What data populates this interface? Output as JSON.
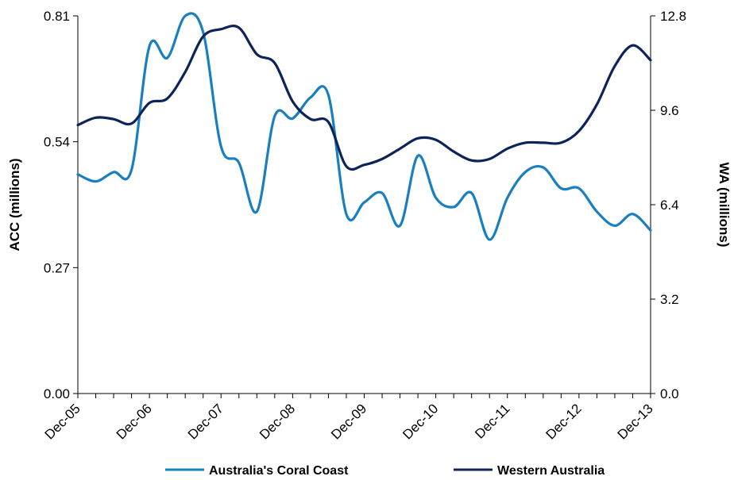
{
  "chart_data": {
    "type": "line",
    "x": [
      "Dec-05",
      "Mar-06",
      "Jun-06",
      "Sep-06",
      "Dec-06",
      "Mar-07",
      "Jun-07",
      "Sep-07",
      "Dec-07",
      "Mar-08",
      "Jun-08",
      "Sep-08",
      "Dec-08",
      "Mar-09",
      "Jun-09",
      "Sep-09",
      "Dec-09",
      "Mar-10",
      "Jun-10",
      "Sep-10",
      "Dec-10",
      "Mar-11",
      "Jun-11",
      "Sep-11",
      "Dec-11",
      "Mar-12",
      "Jun-12",
      "Sep-12",
      "Dec-12",
      "Mar-13",
      "Jun-13",
      "Sep-13",
      "Dec-13"
    ],
    "x_tick_labels": [
      "Dec-05",
      "Dec-06",
      "Dec-07",
      "Dec-08",
      "Dec-09",
      "Dec-10",
      "Dec-11",
      "Dec-12",
      "Dec-13"
    ],
    "y_left": {
      "label": "ACC (millions)",
      "ylim": [
        0,
        0.81
      ],
      "ticks": [
        "0.00",
        "0.27",
        "0.54",
        "0.81"
      ]
    },
    "y_right": {
      "label": "WA (millions)",
      "ylim": [
        0,
        12.8
      ],
      "ticks": [
        "0.0",
        "3.2",
        "6.4",
        "9.6",
        "12.8"
      ]
    },
    "series": [
      {
        "name": "Australia's Coral Coast",
        "axis": "left",
        "color": "#1a7fc1",
        "values": [
          0.47,
          0.455,
          0.475,
          0.48,
          0.745,
          0.72,
          0.81,
          0.775,
          0.53,
          0.495,
          0.39,
          0.595,
          0.59,
          0.635,
          0.64,
          0.385,
          0.41,
          0.43,
          0.36,
          0.51,
          0.42,
          0.4,
          0.43,
          0.33,
          0.42,
          0.475,
          0.485,
          0.44,
          0.44,
          0.39,
          0.36,
          0.385,
          0.35
        ]
      },
      {
        "name": "Western Australia",
        "axis": "right",
        "color": "#0d2459",
        "values": [
          9.1,
          9.35,
          9.3,
          9.15,
          9.85,
          10.0,
          10.9,
          12.1,
          12.35,
          12.4,
          11.5,
          11.2,
          9.9,
          9.3,
          9.2,
          7.7,
          7.75,
          7.95,
          8.3,
          8.65,
          8.6,
          8.2,
          7.9,
          7.95,
          8.3,
          8.5,
          8.5,
          8.5,
          8.9,
          9.8,
          11.1,
          11.8,
          11.3
        ]
      }
    ],
    "grid": false,
    "legend": "bottom"
  }
}
